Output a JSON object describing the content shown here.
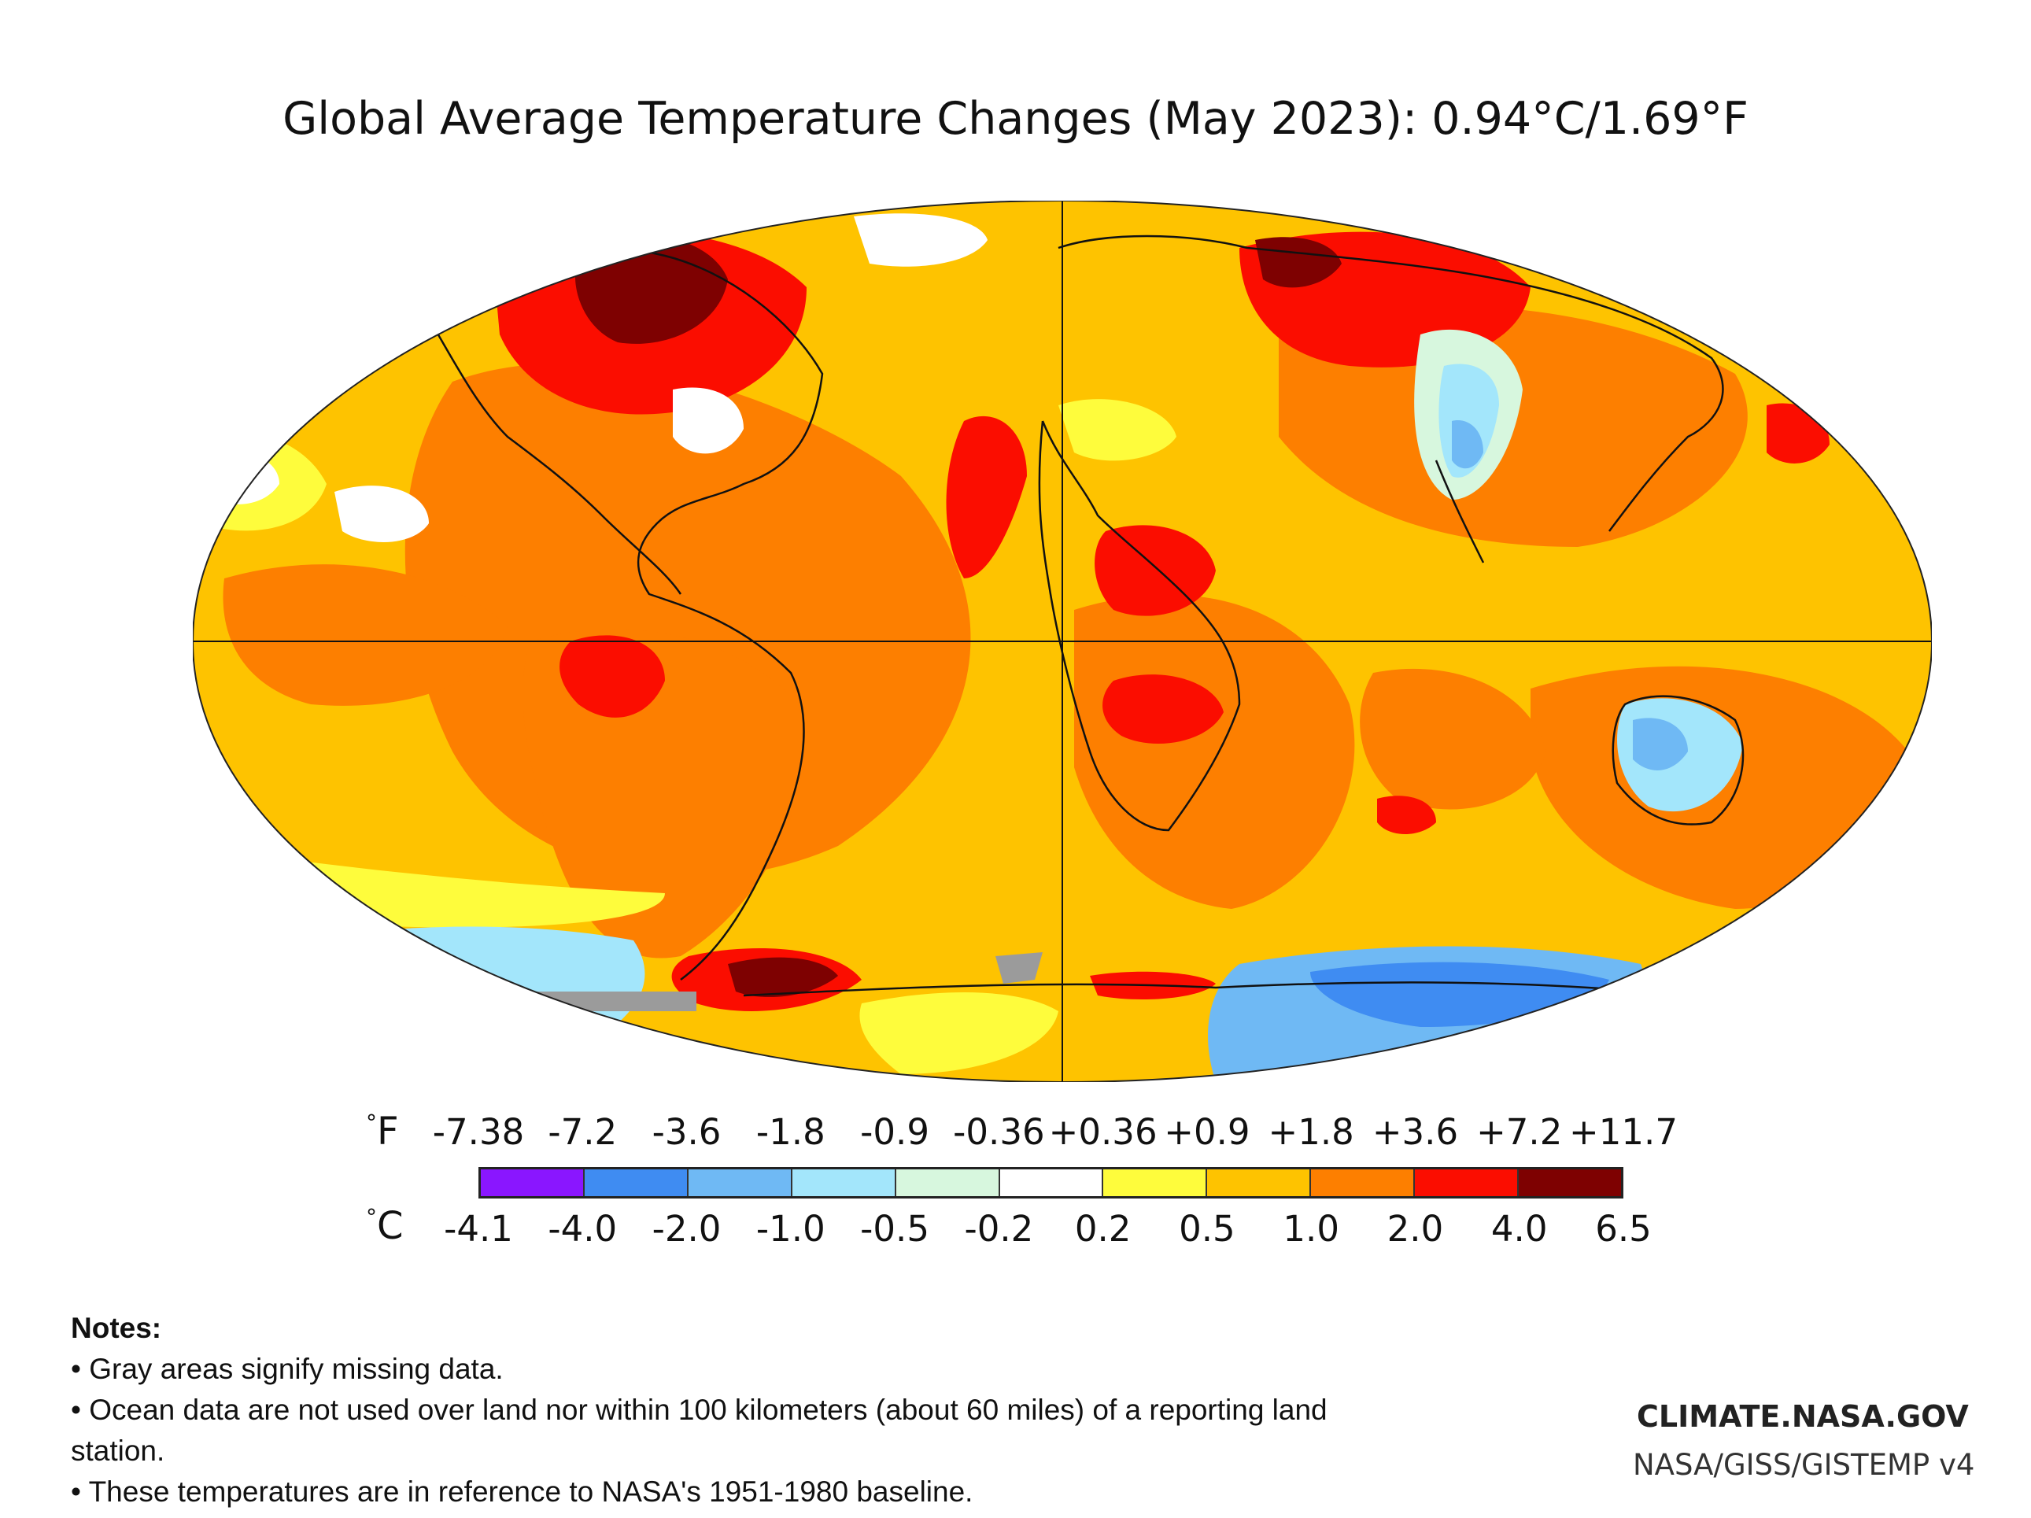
{
  "title": "Global Average Temperature Changes (May 2023): 0.94°C/1.69°F",
  "legend": {
    "unit_f": "F",
    "unit_c": "C",
    "ticks_f": [
      "-7.38",
      "-7.2",
      "-3.6",
      "-1.8",
      "-0.9",
      "-0.36",
      "+0.36",
      "+0.9",
      "+1.8",
      "+3.6",
      "+7.2",
      "+11.7"
    ],
    "ticks_c": [
      "-4.1",
      "-4.0",
      "-2.0",
      "-1.0",
      "-0.5",
      "-0.2",
      "0.2",
      "0.5",
      "1.0",
      "2.0",
      "4.0",
      "6.5"
    ],
    "colors": [
      "#8a16ff",
      "#3f8cf2",
      "#6fb9f4",
      "#a3e6fb",
      "#d7f7de",
      "#ffffff",
      "#fefc3c",
      "#fec300",
      "#fd7f00",
      "#fb0d00",
      "#7e0101"
    ],
    "missing_color": "#9b9b9b"
  },
  "notes": {
    "heading": "Notes:",
    "items": [
      "• Gray areas signify missing data.",
      "• Ocean data are not used over land nor within 100 kilometers (about 60 miles) of a reporting land station.",
      "• These temperatures are in reference to NASA's 1951-1980 baseline."
    ]
  },
  "brand": "CLIMATE.NASA.GOV",
  "source": "NASA/GISS/GISTEMP v4"
}
